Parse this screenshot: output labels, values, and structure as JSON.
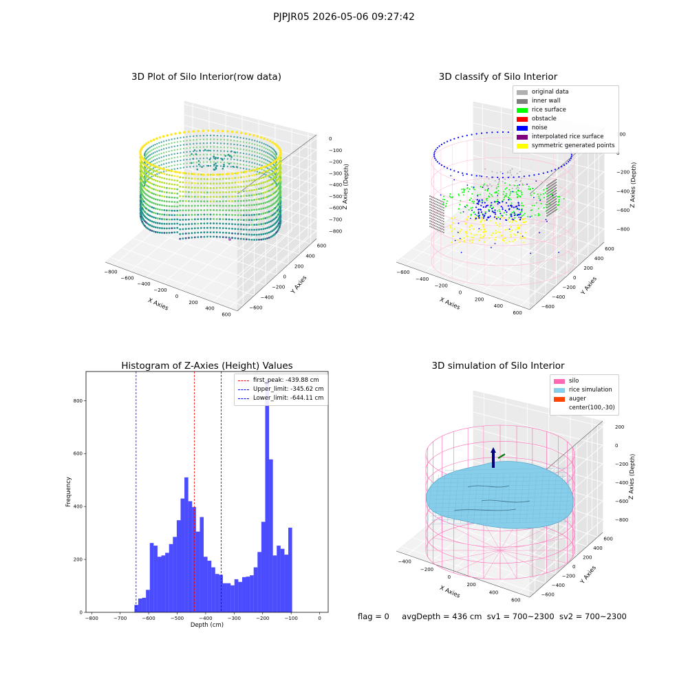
{
  "suptitle": "PJPJR05 2026-05-06 09:27:42",
  "panels": {
    "raw": {
      "title": "3D Plot of Silo Interior(row data)"
    },
    "classify": {
      "title": "3D classify of Silo Interior",
      "legend": [
        {
          "label": "original data",
          "color": "#b0b0b0"
        },
        {
          "label": "inner wall",
          "color": "#808080"
        },
        {
          "label": "rice surface",
          "color": "#00ff00"
        },
        {
          "label": "obstacle",
          "color": "#ff0000"
        },
        {
          "label": "noise",
          "color": "#0000ff"
        },
        {
          "label": "interpolated rice surface",
          "color": "#800080"
        },
        {
          "label": "symmetric generated points",
          "color": "#ffff00"
        }
      ]
    },
    "simulation": {
      "title": "3D simulation of Silo Interior",
      "legend": [
        {
          "label": "silo",
          "color": "#ff69b4"
        },
        {
          "label": "rice simulation",
          "color": "#87ceeb"
        },
        {
          "label": "auger",
          "color": "#ff4500"
        },
        {
          "label": "center(100,-30)",
          "color": ""
        }
      ]
    },
    "axes3d": {
      "xlabel": "X Axies",
      "ylabel": "Y Axies",
      "zlabel": "Z Axies (Depth)"
    }
  },
  "footer": {
    "flag": "flag = 0",
    "avg": "avgDepth = 436 cm",
    "sv1": "sv1 = 700~2300",
    "sv2": "sv2 = 700~2300"
  },
  "chart_data": [
    {
      "type": "scatter",
      "title": "3D Plot of Silo Interior(row data)",
      "xlabel": "X Axies",
      "ylabel": "Y Axies",
      "zlabel": "Z Axies (Depth)",
      "x_ticks": [
        "−800",
        "−600",
        "−400",
        "−200",
        "0",
        "200",
        "400",
        "600"
      ],
      "y_ticks": [
        "−600",
        "−400",
        "−200",
        "0",
        "200",
        "400",
        "600"
      ],
      "z_ticks": [
        "0",
        "−100",
        "−200",
        "−300",
        "−400",
        "−500",
        "−600",
        "−700",
        "−800"
      ],
      "colormap": "viridis"
    },
    {
      "type": "scatter",
      "title": "3D classify of Silo Interior",
      "x_ticks": [
        "−600",
        "−400",
        "−200",
        "0",
        "200",
        "400",
        "600"
      ],
      "y_ticks": [
        "−600",
        "−400",
        "−200",
        "0",
        "200",
        "400",
        "600"
      ],
      "z_ticks": [
        "200",
        "0",
        "−200",
        "−400",
        "−600",
        "−800"
      ]
    },
    {
      "type": "bar",
      "title": "Histogram of Z-Axies (Height) Values",
      "xlabel": "Depth (cm)",
      "ylabel": "Frequency",
      "xlim": [
        -820,
        30
      ],
      "ylim": [
        0,
        910
      ],
      "x_ticks": [
        -800,
        -700,
        -600,
        -500,
        -400,
        -300,
        -200,
        -100,
        0
      ],
      "y_ticks": [
        0,
        200,
        400,
        600,
        800
      ],
      "bin_start": -650,
      "bin_width": 13.5,
      "values": [
        28,
        52,
        55,
        85,
        262,
        252,
        210,
        215,
        225,
        258,
        285,
        348,
        430,
        510,
        420,
        398,
        305,
        360,
        210,
        195,
        170,
        145,
        142,
        110,
        110,
        102,
        125,
        115,
        133,
        135,
        140,
        170,
        228,
        342,
        880,
        578,
        215,
        252,
        240,
        218,
        320
      ],
      "color": "#0000ff",
      "vlines": [
        {
          "label": "first_peak: -439.88 cm",
          "x": -439.88,
          "color": "#ff0000"
        },
        {
          "label": "Upper_limit: -345.62 cm",
          "x": -345.62,
          "color": "#0000ff"
        },
        {
          "label": "Lower_limit: -644.11 cm",
          "x": -644.11,
          "color": "#0000ff"
        }
      ],
      "legend_position": "top-right"
    },
    {
      "type": "area",
      "title": "3D simulation of Silo Interior",
      "x_ticks": [
        "−400",
        "−200",
        "0",
        "200",
        "400",
        "600"
      ],
      "y_ticks": [
        "−600",
        "−400",
        "−200",
        "0",
        "200",
        "400",
        "600"
      ],
      "z_ticks": [
        "200",
        "0",
        "−200",
        "−400",
        "−600",
        "−800"
      ]
    }
  ]
}
